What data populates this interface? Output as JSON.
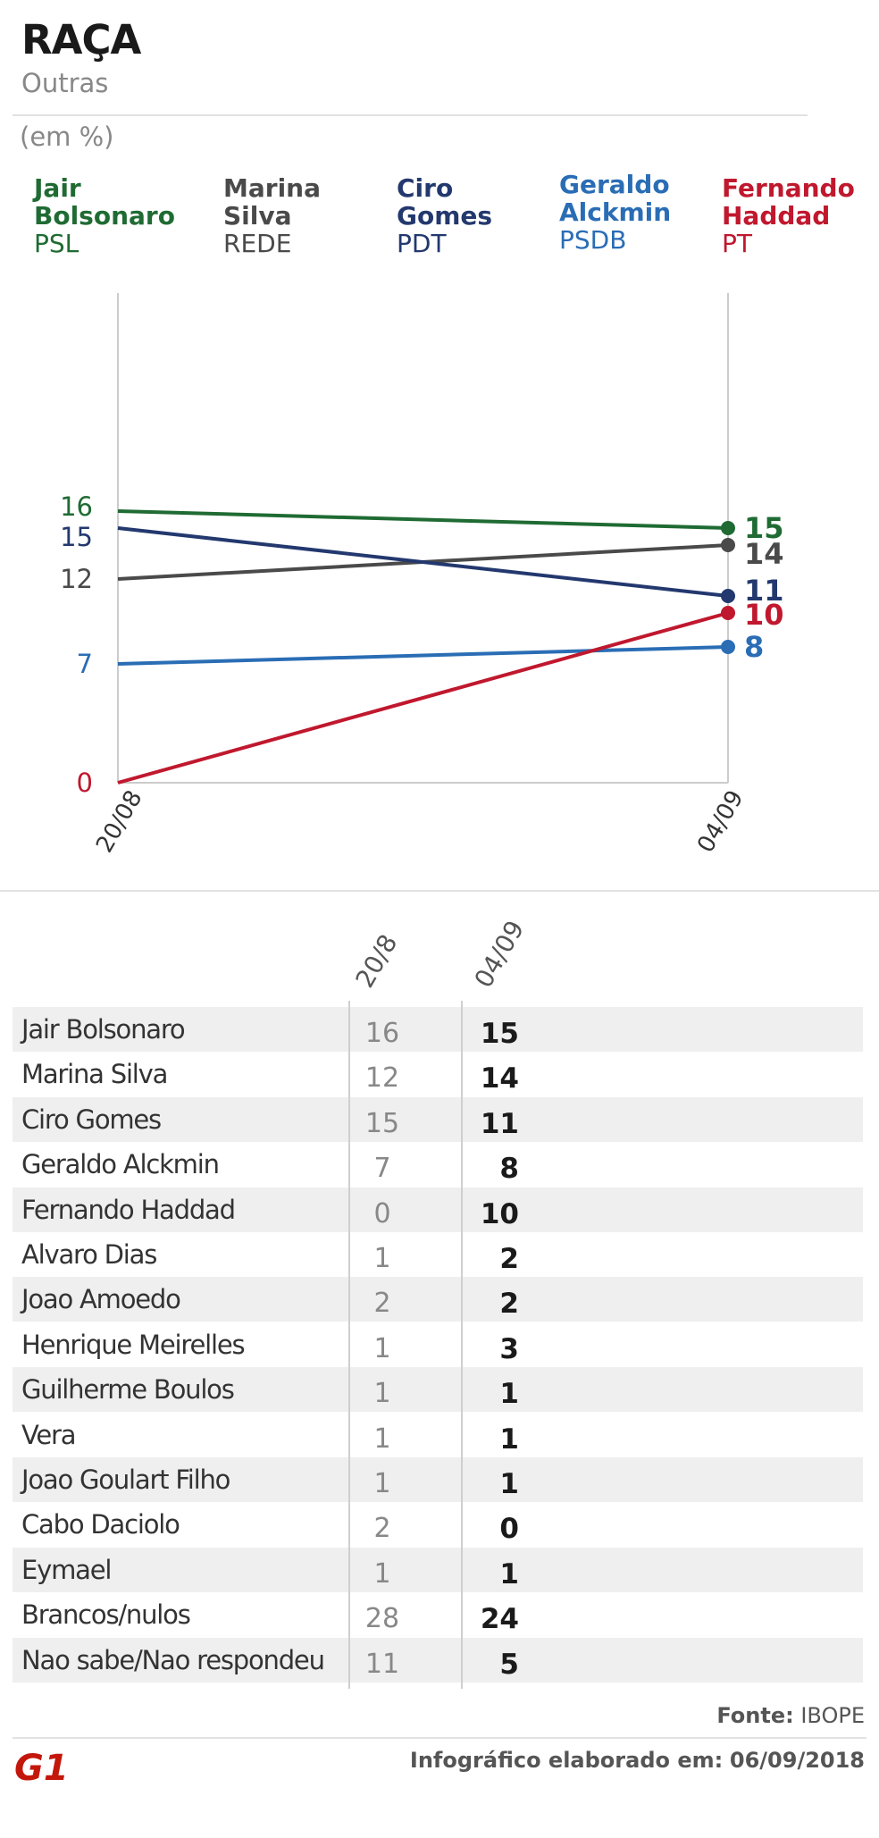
{
  "header": {
    "title": "RAÇA",
    "subtitle": "Outras",
    "unit": "(em %)"
  },
  "legend": [
    {
      "name_line1": "Jair",
      "name_line2": "Bolsonaro",
      "party": "PSL",
      "color": "#1f6b33"
    },
    {
      "name_line1": "Marina",
      "name_line2": "Silva",
      "party": "REDE",
      "color": "#4a4a4a"
    },
    {
      "name_line1": "Ciro",
      "name_line2": "Gomes",
      "party": "PDT",
      "color": "#23386e"
    },
    {
      "name_line1": "Geraldo",
      "name_line2": "Alckmin",
      "party": "PSDB",
      "color": "#2a6db5"
    },
    {
      "name_line1": "Fernando",
      "name_line2": "Haddad",
      "party": "PT",
      "color": "#c0182e"
    }
  ],
  "chart_data": {
    "type": "line",
    "x": [
      "20/08",
      "04/09"
    ],
    "ylabel": "(em %)",
    "series": [
      {
        "name": "Jair Bolsonaro",
        "values": [
          16,
          15
        ],
        "color": "#1f6b33"
      },
      {
        "name": "Marina Silva",
        "values": [
          12,
          14
        ],
        "color": "#4a4a4a"
      },
      {
        "name": "Ciro Gomes",
        "values": [
          15,
          11
        ],
        "color": "#23386e"
      },
      {
        "name": "Geraldo Alckmin",
        "values": [
          7,
          8
        ],
        "color": "#2a6db5"
      },
      {
        "name": "Fernando Haddad",
        "values": [
          0,
          10
        ],
        "color": "#c0182e"
      }
    ]
  },
  "table": {
    "col1": "20/8",
    "col2": "04/09",
    "rows": [
      {
        "name": "Jair Bolsonaro",
        "v1": "16",
        "v2": "15"
      },
      {
        "name": "Marina Silva",
        "v1": "12",
        "v2": "14"
      },
      {
        "name": "Ciro Gomes",
        "v1": "15",
        "v2": "11"
      },
      {
        "name": "Geraldo Alckmin",
        "v1": "7",
        "v2": "8"
      },
      {
        "name": "Fernando Haddad",
        "v1": "0",
        "v2": "10"
      },
      {
        "name": "Alvaro Dias",
        "v1": "1",
        "v2": "2"
      },
      {
        "name": "Joao Amoedo",
        "v1": "2",
        "v2": "2"
      },
      {
        "name": "Henrique Meirelles",
        "v1": "1",
        "v2": "3"
      },
      {
        "name": "Guilherme Boulos",
        "v1": "1",
        "v2": "1"
      },
      {
        "name": "Vera",
        "v1": "1",
        "v2": "1"
      },
      {
        "name": "Joao Goulart Filho",
        "v1": "1",
        "v2": "1"
      },
      {
        "name": "Cabo Daciolo",
        "v1": "2",
        "v2": "0"
      },
      {
        "name": "Eymael",
        "v1": "1",
        "v2": "1"
      },
      {
        "name": "Brancos/nulos",
        "v1": "28",
        "v2": "24"
      },
      {
        "name": "Nao sabe/Nao respondeu",
        "v1": "11",
        "v2": "5"
      }
    ]
  },
  "footer": {
    "source_label": "Fonte:",
    "source": "IBOPE",
    "date_label": "Infográfico elaborado em:",
    "date": "06/09/2018",
    "logo_text": "G1",
    "logo_color": "#c4170c"
  }
}
